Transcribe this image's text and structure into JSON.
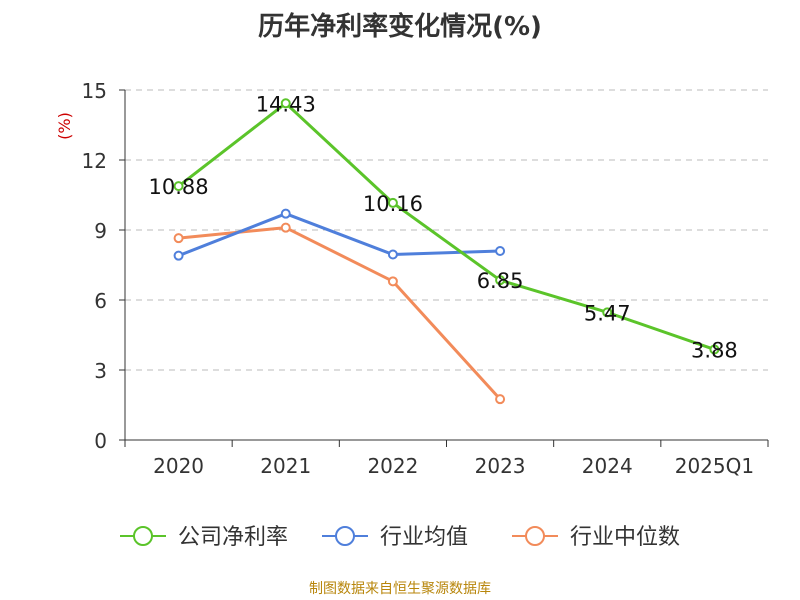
{
  "chart_data": {
    "type": "line",
    "title": "历年净利率变化情况(%)",
    "ylabel": "(%)",
    "xlabel": "",
    "ylim": [
      0,
      15
    ],
    "yticks": [
      "0",
      "3",
      "6",
      "9",
      "12",
      "15"
    ],
    "categories": [
      "2020",
      "2021",
      "2022",
      "2023",
      "2024",
      "2025Q1"
    ],
    "series": [
      {
        "name": "公司净利率",
        "color": "#5bc42a",
        "values": [
          10.88,
          14.43,
          10.16,
          6.85,
          5.47,
          3.88
        ],
        "labels": [
          "10.88",
          "14.43",
          "10.16",
          "6.85",
          "5.47",
          "3.88"
        ]
      },
      {
        "name": "行业均值",
        "color": "#4f7fdb",
        "values": [
          7.9,
          9.7,
          7.95,
          8.1,
          null,
          null
        ]
      },
      {
        "name": "行业中位数",
        "color": "#f28b5a",
        "values": [
          8.65,
          9.1,
          6.8,
          1.75,
          null,
          null
        ]
      }
    ],
    "grid": true,
    "legend_position": "bottom"
  },
  "source": "制图数据来自恒生聚源数据库"
}
